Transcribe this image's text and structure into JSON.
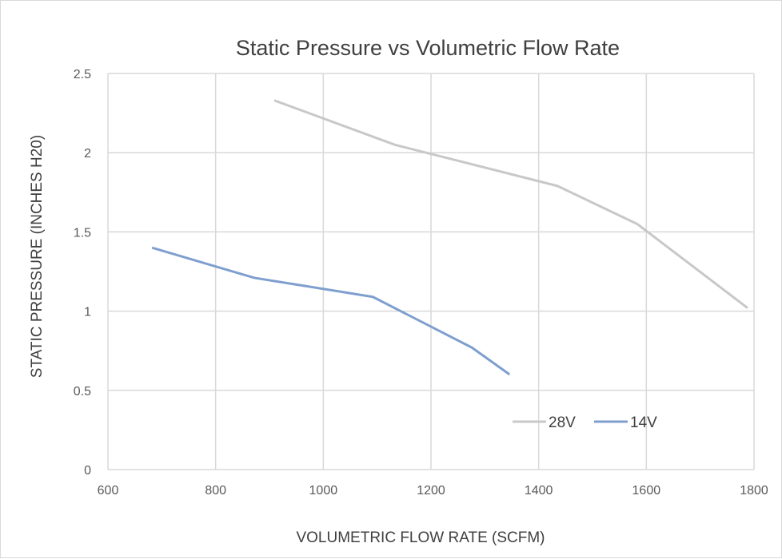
{
  "chart_data": {
    "type": "line",
    "title": "Static Pressure vs Volumetric Flow Rate",
    "xlabel": "VOLUMETRIC FLOW RATE (SCFM)",
    "ylabel": "STATIC PRESSURE (INCHES H20)",
    "xlim": [
      600,
      1800
    ],
    "ylim": [
      0,
      2.5
    ],
    "xticks": [
      "600",
      "800",
      "1000",
      "1200",
      "1400",
      "1600",
      "1800"
    ],
    "yticks": [
      "0",
      "0.5",
      "1",
      "1.5",
      "2",
      "2.5"
    ],
    "grid": true,
    "legend_position": "bottom-right inside",
    "series": [
      {
        "name": "28V",
        "color": "#c8c8c8",
        "x": [
          909,
          1133,
          1435,
          1583,
          1788
        ],
        "y": [
          2.33,
          2.05,
          1.79,
          1.55,
          1.02
        ]
      },
      {
        "name": "14V",
        "color": "#7f9fcf",
        "x": [
          682,
          872,
          1092,
          1276,
          1346
        ],
        "y": [
          1.4,
          1.21,
          1.09,
          0.77,
          0.6
        ]
      }
    ]
  }
}
